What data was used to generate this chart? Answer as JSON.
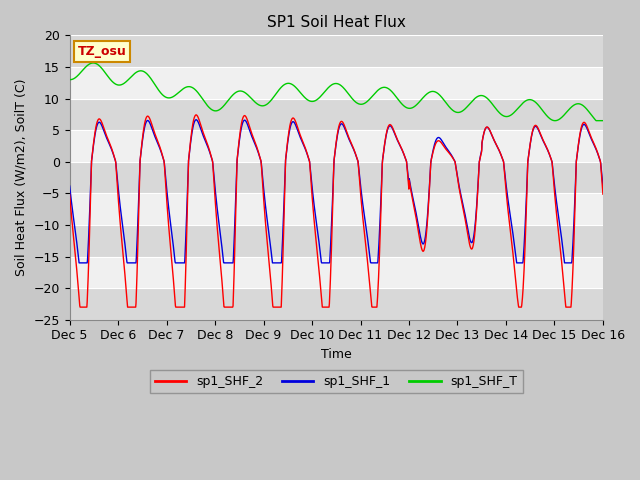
{
  "title": "SP1 Soil Heat Flux",
  "xlabel": "Time",
  "ylabel": "Soil Heat Flux (W/m2), SoilT (C)",
  "ylim": [
    -25,
    20
  ],
  "yticks": [
    -25,
    -20,
    -15,
    -10,
    -5,
    0,
    5,
    10,
    15,
    20
  ],
  "xticklabels": [
    "Dec 5",
    "Dec 6",
    "Dec 7",
    "Dec 8",
    "Dec 9",
    "Dec 10",
    "Dec 11",
    "Dec 12",
    "Dec 13",
    "Dec 14",
    "Dec 15",
    "Dec 16"
  ],
  "legend_labels": [
    "sp1_SHF_2",
    "sp1_SHF_1",
    "sp1_SHF_T"
  ],
  "legend_colors": [
    "#ff0000",
    "#0000dd",
    "#00cc00"
  ],
  "annotation_text": "TZ_osu",
  "annotation_bg": "#ffffcc",
  "annotation_border": "#cc8800",
  "line_colors": {
    "SHF_2": "#ff0000",
    "SHF_1": "#0000dd",
    "SHF_T": "#00cc00"
  },
  "fig_bg": "#c8c8c8",
  "plot_bg": "#e8e8e8",
  "band_color_light": "#d8d8d8",
  "band_color_white": "#f0f0f0",
  "title_fontsize": 11,
  "label_fontsize": 9,
  "tick_fontsize": 9
}
